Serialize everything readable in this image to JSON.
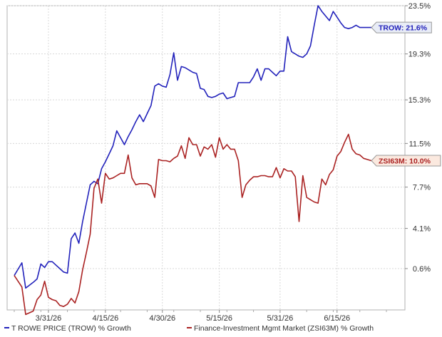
{
  "chart_data": {
    "type": "line",
    "x": [
      "2026-03-22",
      "2026-03-24",
      "2026-03-25",
      "2026-03-27",
      "2026-03-28",
      "2026-03-29",
      "2026-03-30",
      "2026-03-31",
      "2026-04-01",
      "2026-04-02",
      "2026-04-03",
      "2026-04-04",
      "2026-04-05",
      "2026-04-06",
      "2026-04-07",
      "2026-04-08",
      "2026-04-09",
      "2026-04-10",
      "2026-04-11",
      "2026-04-12",
      "2026-04-13",
      "2026-04-14",
      "2026-04-15",
      "2026-04-16",
      "2026-04-17",
      "2026-04-18",
      "2026-04-19",
      "2026-04-20",
      "2026-04-21",
      "2026-04-22",
      "2026-04-23",
      "2026-04-24",
      "2026-04-25",
      "2026-04-26",
      "2026-04-27",
      "2026-04-28",
      "2026-04-29",
      "2026-04-30",
      "2026-05-01",
      "2026-05-02",
      "2026-05-03",
      "2026-05-04",
      "2026-05-05",
      "2026-05-06",
      "2026-05-07",
      "2026-05-08",
      "2026-05-09",
      "2026-05-10",
      "2026-05-11",
      "2026-05-12",
      "2026-05-13",
      "2026-05-14",
      "2026-05-15",
      "2026-05-16",
      "2026-05-17",
      "2026-05-18",
      "2026-05-19",
      "2026-05-20",
      "2026-05-21",
      "2026-05-22",
      "2026-05-23",
      "2026-05-24",
      "2026-05-25",
      "2026-05-26",
      "2026-05-27",
      "2026-05-28",
      "2026-05-29",
      "2026-05-30",
      "2026-05-31",
      "2026-06-01",
      "2026-06-02",
      "2026-06-03",
      "2026-06-04",
      "2026-06-05",
      "2026-06-06",
      "2026-06-07",
      "2026-06-08",
      "2026-06-09",
      "2026-06-10",
      "2026-06-11",
      "2026-06-12",
      "2026-06-13",
      "2026-06-14",
      "2026-06-15",
      "2026-06-16",
      "2026-06-17",
      "2026-06-18",
      "2026-06-19",
      "2026-06-20",
      "2026-06-21",
      "2026-06-22",
      "2026-06-23",
      "2026-06-24",
      "2026-06-25",
      "2026-06-26"
    ],
    "x_ticks": [
      "3/31/26",
      "4/15/26",
      "4/30/26",
      "5/15/26",
      "5/31/26",
      "6/15/26"
    ],
    "y_ticks": [
      "0.6%",
      "4.1%",
      "7.7%",
      "11.5%",
      "15.3%",
      "19.3%",
      "23.5%"
    ],
    "y_tick_values": [
      0.6,
      4.1,
      7.7,
      11.5,
      15.3,
      19.3,
      23.5
    ],
    "ylim": [
      -3.0,
      23.5
    ],
    "grid": true,
    "legend_position": "bottom",
    "series": [
      {
        "name": "T ROWE PRICE (TROW) % Growth",
        "color": "#2222bb",
        "values": [
          0.0,
          1.1,
          -1.1,
          -0.6,
          -0.3,
          1.0,
          0.7,
          1.2,
          1.2,
          0.9,
          0.6,
          0.3,
          0.2,
          3.2,
          3.7,
          2.8,
          4.7,
          6.3,
          7.9,
          8.2,
          8.0,
          9.3,
          9.9,
          10.6,
          11.3,
          12.6,
          12.0,
          11.4,
          12.1,
          12.7,
          13.4,
          14.0,
          13.4,
          14.1,
          14.8,
          16.5,
          16.7,
          16.5,
          16.4,
          17.5,
          19.4,
          17.0,
          18.2,
          18.1,
          17.9,
          17.7,
          17.6,
          16.3,
          16.2,
          15.6,
          15.5,
          15.6,
          15.8,
          15.9,
          15.4,
          15.5,
          15.6,
          16.8,
          16.8,
          16.8,
          16.8,
          17.3,
          18.0,
          17.0,
          18.0,
          18.0,
          17.7,
          17.4,
          17.8,
          17.8,
          20.8,
          19.5,
          19.3,
          19.1,
          19.0,
          19.3,
          20.0,
          21.8,
          23.5,
          23.0,
          22.6,
          22.2,
          23.0,
          22.5,
          22.0,
          21.6,
          21.5,
          21.6,
          21.8,
          21.6,
          21.6,
          21.6,
          21.6,
          21.6,
          21.6
        ]
      },
      {
        "name": "Finance-Investment Mgmt Market (ZSI63M) % Growth",
        "color": "#aa2222",
        "values": [
          0.0,
          -1.0,
          -3.4,
          -3.1,
          -2.1,
          -1.7,
          -0.5,
          -1.9,
          -2.1,
          -2.2,
          -2.6,
          -2.7,
          -2.5,
          -2.0,
          -2.4,
          -1.4,
          0.5,
          2.0,
          3.6,
          7.6,
          8.4,
          6.3,
          8.9,
          8.4,
          8.5,
          8.7,
          8.9,
          8.9,
          10.5,
          8.5,
          7.9,
          8.0,
          8.0,
          8.0,
          7.8,
          6.8,
          10.1,
          10.0,
          10.0,
          9.9,
          10.2,
          10.4,
          11.3,
          10.2,
          12.0,
          11.4,
          11.4,
          10.4,
          11.2,
          11.0,
          11.4,
          10.3,
          12.0,
          11.0,
          11.4,
          11.0,
          11.0,
          10.0,
          6.8,
          7.9,
          8.3,
          8.6,
          8.6,
          8.7,
          8.7,
          8.6,
          8.6,
          9.4,
          8.5,
          9.3,
          9.1,
          9.1,
          8.6,
          4.7,
          8.7,
          6.8,
          6.6,
          6.4,
          6.3,
          8.4,
          7.9,
          8.8,
          9.2,
          10.4,
          10.8,
          11.6,
          12.3,
          11.0,
          10.6,
          10.5,
          10.2,
          10.1,
          10.0,
          10.0,
          10.0
        ]
      }
    ],
    "end_labels": [
      {
        "series": 0,
        "text": "TROW: 21.6%",
        "bg": "#e8ecf6",
        "color": "#2222bb"
      },
      {
        "series": 1,
        "text": "ZSI63M: 10.0%",
        "bg": "#fbe9df",
        "color": "#aa2222"
      }
    ]
  }
}
